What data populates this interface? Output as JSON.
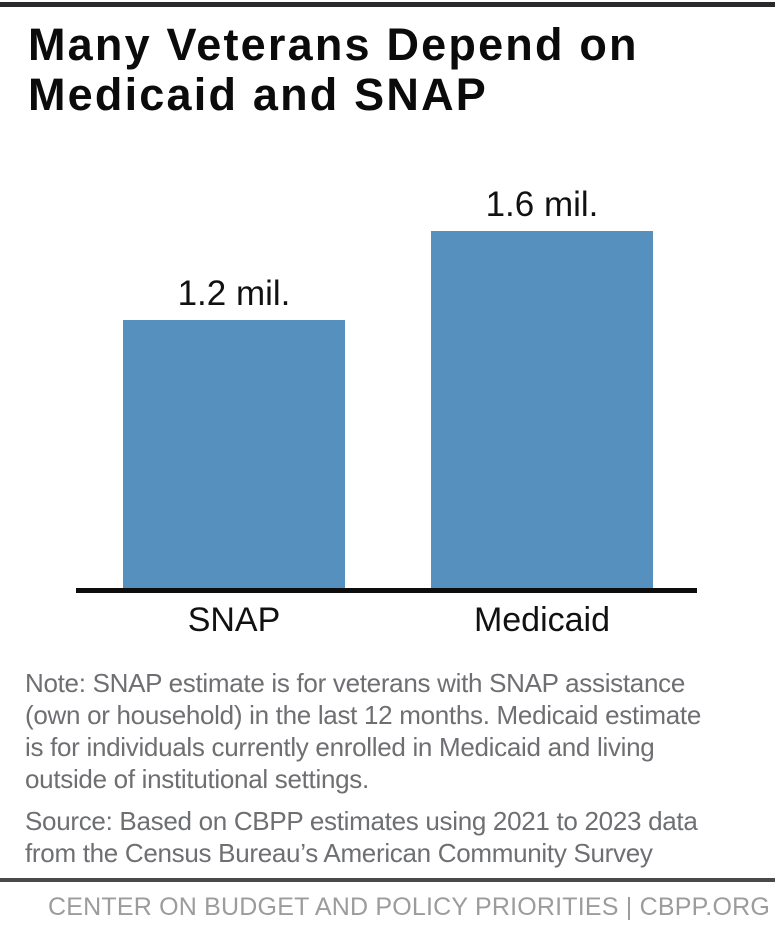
{
  "title": {
    "line1": "Many Veterans Depend on",
    "line2": "Medicaid and SNAP"
  },
  "chart_data": {
    "type": "bar",
    "title": "Many Veterans Depend on Medicaid and SNAP",
    "categories": [
      "SNAP",
      "Medicaid"
    ],
    "values": [
      1.2,
      1.6
    ],
    "value_labels": [
      "1.2 mil.",
      "1.6 mil."
    ],
    "unit": "millions of veterans",
    "bar_color": "#5690BE",
    "axis_ranges": {
      "y": [
        0,
        1.6
      ]
    },
    "grid": false,
    "legend": "none",
    "y_axis_visible": false,
    "x_baseline_visible": true
  },
  "note": {
    "lines": [
      "Note: SNAP estimate is for veterans with SNAP assistance",
      "(own or household) in the last 12 months. Medicaid estimate",
      "is for individuals currently enrolled in Medicaid and living",
      "outside of institutional settings."
    ]
  },
  "source": {
    "lines": [
      "Source: Based on CBPP estimates using 2021 to 2023 data",
      "from the Census Bureau’s American Community Survey"
    ]
  },
  "footer": {
    "credit": "CENTER ON BUDGET AND POLICY PRIORITIES | CBPP.ORG"
  },
  "colors": {
    "bar_blue": "#5690BE",
    "title_black": "#0b0b0b",
    "note_gray": "#6e6f72",
    "footer_gray": "#9c9c9c",
    "divider_gray": "#4a4a4d",
    "top_bar": "#2a2a2c"
  }
}
